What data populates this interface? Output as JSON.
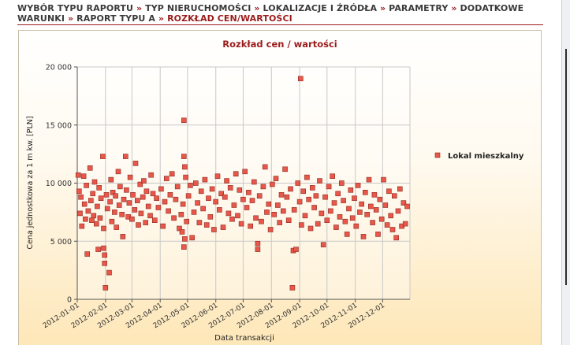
{
  "breadcrumb": {
    "items": [
      {
        "label": "WYBÓR TYPU RAPORTU"
      },
      {
        "label": "TYP NIERUCHOMOŚCI"
      },
      {
        "label": "LOKALIZACJE I ŹRÓDŁA"
      },
      {
        "label": "PARAMETRY"
      },
      {
        "label": "DODATKOWE WARUNKI"
      },
      {
        "label": "RAPORT TYPU A"
      }
    ],
    "current": "ROZKŁAD CEN/WARTOŚCI",
    "separator": "»"
  },
  "colors": {
    "accent": "#9b1b1b",
    "marker_fill": "#e8574a",
    "marker_stroke": "#8a2b22"
  },
  "chart_data": {
    "type": "scatter",
    "title": "Rozkład cen / wartości",
    "xlabel": "Data transakcji",
    "ylabel": "Cena jednostkowa za 1 m kw. [PLN]",
    "ylim": [
      0,
      20000
    ],
    "yticks": [
      0,
      5000,
      10000,
      15000,
      20000
    ],
    "ytick_labels": [
      "0",
      "5 000",
      "10 000",
      "15 000",
      "20 000"
    ],
    "xlim": [
      "2012-01-01",
      "2012-12-31"
    ],
    "xtick_labels": [
      "2012-01-01",
      "2012-02-01",
      "2012-03-01",
      "2012-04-01",
      "2012-05-01",
      "2012-06-01",
      "2012-07-01",
      "2012-08-01",
      "2012-09-01",
      "2012-10-01",
      "2012-11-01",
      "2012-12-01"
    ],
    "grid": true,
    "legend_position": "right",
    "series": [
      {
        "name": "Lokal mieszkalny",
        "points": [
          [
            "2012-01-02",
            10700
          ],
          [
            "2012-01-03",
            9300
          ],
          [
            "2012-01-04",
            7400
          ],
          [
            "2012-01-05",
            8800
          ],
          [
            "2012-01-06",
            6300
          ],
          [
            "2012-01-08",
            10600
          ],
          [
            "2012-01-09",
            8200
          ],
          [
            "2012-01-10",
            6900
          ],
          [
            "2012-01-11",
            9800
          ],
          [
            "2012-01-12",
            3900
          ],
          [
            "2012-01-13",
            7600
          ],
          [
            "2012-01-15",
            11300
          ],
          [
            "2012-01-16",
            8500
          ],
          [
            "2012-01-17",
            6800
          ],
          [
            "2012-01-18",
            9100
          ],
          [
            "2012-01-19",
            7200
          ],
          [
            "2012-01-20",
            10100
          ],
          [
            "2012-01-22",
            6500
          ],
          [
            "2012-01-23",
            8000
          ],
          [
            "2012-01-24",
            4300
          ],
          [
            "2012-01-25",
            9600
          ],
          [
            "2012-01-26",
            7000
          ],
          [
            "2012-01-27",
            8700
          ],
          [
            "2012-01-29",
            12300
          ],
          [
            "2012-01-30",
            6100
          ],
          [
            "2012-01-30",
            4400
          ],
          [
            "2012-01-31",
            3800
          ],
          [
            "2012-01-31",
            3100
          ],
          [
            "2012-02-01",
            1000
          ],
          [
            "2012-02-02",
            9000
          ],
          [
            "2012-02-03",
            7800
          ],
          [
            "2012-02-05",
            2300
          ],
          [
            "2012-02-06",
            8400
          ],
          [
            "2012-02-07",
            10300
          ],
          [
            "2012-02-08",
            6700
          ],
          [
            "2012-02-09",
            9200
          ],
          [
            "2012-02-11",
            7500
          ],
          [
            "2012-02-12",
            8900
          ],
          [
            "2012-02-13",
            6200
          ],
          [
            "2012-02-15",
            11000
          ],
          [
            "2012-02-16",
            8100
          ],
          [
            "2012-02-17",
            9700
          ],
          [
            "2012-02-19",
            7300
          ],
          [
            "2012-02-20",
            5400
          ],
          [
            "2012-02-21",
            8600
          ],
          [
            "2012-02-23",
            12300
          ],
          [
            "2012-02-24",
            9400
          ],
          [
            "2012-02-26",
            7100
          ],
          [
            "2012-02-27",
            8300
          ],
          [
            "2012-02-28",
            10500
          ],
          [
            "2012-03-01",
            6900
          ],
          [
            "2012-03-02",
            9000
          ],
          [
            "2012-03-04",
            7700
          ],
          [
            "2012-03-05",
            11700
          ],
          [
            "2012-03-07",
            8500
          ],
          [
            "2012-03-08",
            6400
          ],
          [
            "2012-03-10",
            9900
          ],
          [
            "2012-03-11",
            7400
          ],
          [
            "2012-03-13",
            8800
          ],
          [
            "2012-03-14",
            10200
          ],
          [
            "2012-03-16",
            6600
          ],
          [
            "2012-03-17",
            9300
          ],
          [
            "2012-03-19",
            8000
          ],
          [
            "2012-03-21",
            7200
          ],
          [
            "2012-03-22",
            10700
          ],
          [
            "2012-03-24",
            9100
          ],
          [
            "2012-03-26",
            6800
          ],
          [
            "2012-03-28",
            8700
          ],
          [
            "2012-03-30",
            7900
          ],
          [
            "2012-04-02",
            9500
          ],
          [
            "2012-04-04",
            6300
          ],
          [
            "2012-04-06",
            8400
          ],
          [
            "2012-04-08",
            10400
          ],
          [
            "2012-04-10",
            7600
          ],
          [
            "2012-04-12",
            9000
          ],
          [
            "2012-04-14",
            10800
          ],
          [
            "2012-04-16",
            7000
          ],
          [
            "2012-04-18",
            8600
          ],
          [
            "2012-04-20",
            9700
          ],
          [
            "2012-04-22",
            6100
          ],
          [
            "2012-04-24",
            7300
          ],
          [
            "2012-04-25",
            5800
          ],
          [
            "2012-04-26",
            8200
          ],
          [
            "2012-04-27",
            15400
          ],
          [
            "2012-04-27",
            12300
          ],
          [
            "2012-04-27",
            4500
          ],
          [
            "2012-04-28",
            5200
          ],
          [
            "2012-04-28",
            11400
          ],
          [
            "2012-04-29",
            10500
          ],
          [
            "2012-04-30",
            6700
          ],
          [
            "2012-05-02",
            8900
          ],
          [
            "2012-05-04",
            9800
          ],
          [
            "2012-05-06",
            5300
          ],
          [
            "2012-05-08",
            7500
          ],
          [
            "2012-05-10",
            10000
          ],
          [
            "2012-05-12",
            8300
          ],
          [
            "2012-05-14",
            6600
          ],
          [
            "2012-05-16",
            9300
          ],
          [
            "2012-05-18",
            7800
          ],
          [
            "2012-05-20",
            10300
          ],
          [
            "2012-05-22",
            6400
          ],
          [
            "2012-05-24",
            8700
          ],
          [
            "2012-05-26",
            7100
          ],
          [
            "2012-05-28",
            9500
          ],
          [
            "2012-05-30",
            6000
          ],
          [
            "2012-06-01",
            8400
          ],
          [
            "2012-06-03",
            10600
          ],
          [
            "2012-06-05",
            7700
          ],
          [
            "2012-06-07",
            9100
          ],
          [
            "2012-06-09",
            6200
          ],
          [
            "2012-06-11",
            8800
          ],
          [
            "2012-06-13",
            10200
          ],
          [
            "2012-06-15",
            7400
          ],
          [
            "2012-06-17",
            9600
          ],
          [
            "2012-06-19",
            6900
          ],
          [
            "2012-06-21",
            8100
          ],
          [
            "2012-06-23",
            10800
          ],
          [
            "2012-06-25",
            7200
          ],
          [
            "2012-06-27",
            9400
          ],
          [
            "2012-06-29",
            6500
          ],
          [
            "2012-07-01",
            8600
          ],
          [
            "2012-07-03",
            11000
          ],
          [
            "2012-07-05",
            7900
          ],
          [
            "2012-07-07",
            9200
          ],
          [
            "2012-07-09",
            6300
          ],
          [
            "2012-07-11",
            8500
          ],
          [
            "2012-07-13",
            10100
          ],
          [
            "2012-07-15",
            7000
          ],
          [
            "2012-07-17",
            4300
          ],
          [
            "2012-07-17",
            4800
          ],
          [
            "2012-07-19",
            8900
          ],
          [
            "2012-07-21",
            6700
          ],
          [
            "2012-07-23",
            9700
          ],
          [
            "2012-07-25",
            11400
          ],
          [
            "2012-07-27",
            7500
          ],
          [
            "2012-07-29",
            8200
          ],
          [
            "2012-07-31",
            6000
          ],
          [
            "2012-08-02",
            9900
          ],
          [
            "2012-08-04",
            7300
          ],
          [
            "2012-08-06",
            10400
          ],
          [
            "2012-08-08",
            8100
          ],
          [
            "2012-08-10",
            6600
          ],
          [
            "2012-08-12",
            9000
          ],
          [
            "2012-08-14",
            7600
          ],
          [
            "2012-08-16",
            11200
          ],
          [
            "2012-08-18",
            8800
          ],
          [
            "2012-08-20",
            6800
          ],
          [
            "2012-08-22",
            9500
          ],
          [
            "2012-08-24",
            1000
          ],
          [
            "2012-08-25",
            4200
          ],
          [
            "2012-08-26",
            7700
          ],
          [
            "2012-08-28",
            4300
          ],
          [
            "2012-08-30",
            10000
          ],
          [
            "2012-09-01",
            8400
          ],
          [
            "2012-09-02",
            19000
          ],
          [
            "2012-09-03",
            6400
          ],
          [
            "2012-09-05",
            9300
          ],
          [
            "2012-09-07",
            7200
          ],
          [
            "2012-09-09",
            10500
          ],
          [
            "2012-09-11",
            8600
          ],
          [
            "2012-09-13",
            6100
          ],
          [
            "2012-09-15",
            9600
          ],
          [
            "2012-09-17",
            7900
          ],
          [
            "2012-09-19",
            8900
          ],
          [
            "2012-09-21",
            6500
          ],
          [
            "2012-09-23",
            10200
          ],
          [
            "2012-09-25",
            7400
          ],
          [
            "2012-09-27",
            4700
          ],
          [
            "2012-09-29",
            8800
          ],
          [
            "2012-10-01",
            6800
          ],
          [
            "2012-10-03",
            9700
          ],
          [
            "2012-10-05",
            7600
          ],
          [
            "2012-10-07",
            10600
          ],
          [
            "2012-10-09",
            8300
          ],
          [
            "2012-10-11",
            6200
          ],
          [
            "2012-10-13",
            9100
          ],
          [
            "2012-10-15",
            7100
          ],
          [
            "2012-10-17",
            10000
          ],
          [
            "2012-10-19",
            8500
          ],
          [
            "2012-10-21",
            6700
          ],
          [
            "2012-10-23",
            5600
          ],
          [
            "2012-10-25",
            7800
          ],
          [
            "2012-10-27",
            9400
          ],
          [
            "2012-10-29",
            7000
          ],
          [
            "2012-10-31",
            8700
          ],
          [
            "2012-11-02",
            6300
          ],
          [
            "2012-11-04",
            9800
          ],
          [
            "2012-11-06",
            7500
          ],
          [
            "2012-11-08",
            8200
          ],
          [
            "2012-11-10",
            5400
          ],
          [
            "2012-11-12",
            9200
          ],
          [
            "2012-11-14",
            7300
          ],
          [
            "2012-11-16",
            10300
          ],
          [
            "2012-11-18",
            8000
          ],
          [
            "2012-11-20",
            6600
          ],
          [
            "2012-11-22",
            9000
          ],
          [
            "2012-11-24",
            7700
          ],
          [
            "2012-11-26",
            5600
          ],
          [
            "2012-11-28",
            8600
          ],
          [
            "2012-11-30",
            6900
          ],
          [
            "2012-12-02",
            10300
          ],
          [
            "2012-12-04",
            8100
          ],
          [
            "2012-12-06",
            6400
          ],
          [
            "2012-12-08",
            9300
          ],
          [
            "2012-12-10",
            7200
          ],
          [
            "2012-12-12",
            6000
          ],
          [
            "2012-12-14",
            8900
          ],
          [
            "2012-12-16",
            5300
          ],
          [
            "2012-12-18",
            7600
          ],
          [
            "2012-12-20",
            9500
          ],
          [
            "2012-12-22",
            6300
          ],
          [
            "2012-12-24",
            8300
          ],
          [
            "2012-12-26",
            6500
          ],
          [
            "2012-12-28",
            8000
          ]
        ]
      }
    ]
  }
}
